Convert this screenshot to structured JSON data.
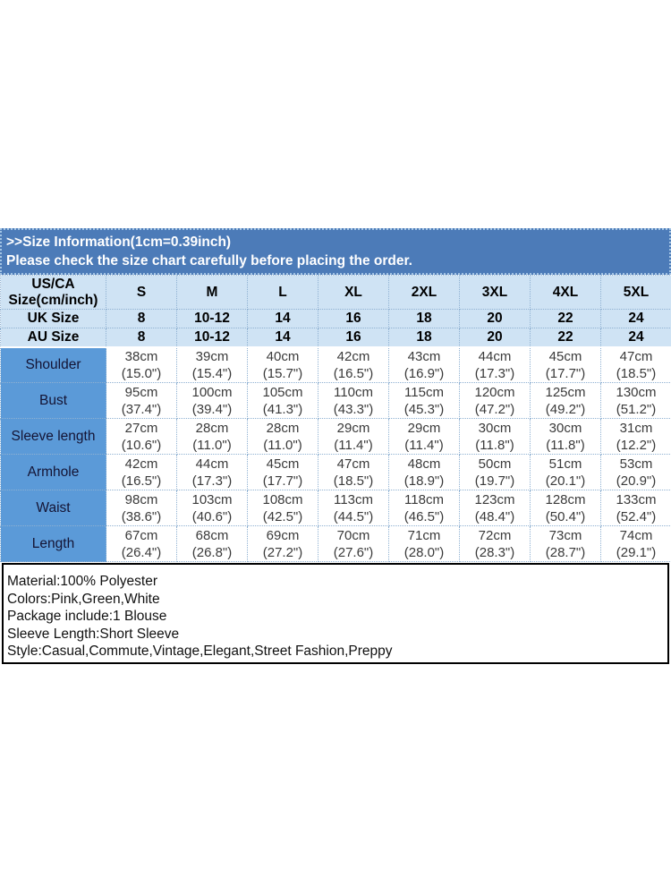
{
  "banner": {
    "line1": ">>Size Information(1cm=0.39inch)",
    "line2": "Please check the size chart carefully before placing the order."
  },
  "size_table": {
    "corner_label_line1": "US/CA",
    "corner_label_line2": "Size(cm/inch)",
    "size_columns": [
      "S",
      "M",
      "L",
      "XL",
      "2XL",
      "3XL",
      "4XL",
      "5XL"
    ],
    "conversion_rows": [
      {
        "label": "UK Size",
        "values": [
          "8",
          "10-12",
          "14",
          "16",
          "18",
          "20",
          "22",
          "24"
        ]
      },
      {
        "label": "AU Size",
        "values": [
          "8",
          "10-12",
          "14",
          "16",
          "18",
          "20",
          "22",
          "24"
        ]
      }
    ],
    "measurement_rows": [
      {
        "label": "Shoulder",
        "cm": [
          "38cm",
          "39cm",
          "40cm",
          "42cm",
          "43cm",
          "44cm",
          "45cm",
          "47cm"
        ],
        "inch": [
          "(15.0\")",
          "(15.4\")",
          "(15.7\")",
          "(16.5\")",
          "(16.9\")",
          "(17.3\")",
          "(17.7\")",
          "(18.5\")"
        ]
      },
      {
        "label": "Bust",
        "cm": [
          "95cm",
          "100cm",
          "105cm",
          "110cm",
          "115cm",
          "120cm",
          "125cm",
          "130cm"
        ],
        "inch": [
          "(37.4\")",
          "(39.4\")",
          "(41.3\")",
          "(43.3\")",
          "(45.3\")",
          "(47.2\")",
          "(49.2\")",
          "(51.2\")"
        ]
      },
      {
        "label": "Sleeve length",
        "cm": [
          "27cm",
          "28cm",
          "28cm",
          "29cm",
          "29cm",
          "30cm",
          "30cm",
          "31cm"
        ],
        "inch": [
          "(10.6\")",
          "(11.0\")",
          "(11.0\")",
          "(11.4\")",
          "(11.4\")",
          "(11.8\")",
          "(11.8\")",
          "(12.2\")"
        ]
      },
      {
        "label": "Armhole",
        "cm": [
          "42cm",
          "44cm",
          "45cm",
          "47cm",
          "48cm",
          "50cm",
          "51cm",
          "53cm"
        ],
        "inch": [
          "(16.5\")",
          "(17.3\")",
          "(17.7\")",
          "(18.5\")",
          "(18.9\")",
          "(19.7\")",
          "(20.1\")",
          "(20.9\")"
        ]
      },
      {
        "label": "Waist",
        "cm": [
          "98cm",
          "103cm",
          "108cm",
          "113cm",
          "118cm",
          "123cm",
          "128cm",
          "133cm"
        ],
        "inch": [
          "(38.6\")",
          "(40.6\")",
          "(42.5\")",
          "(44.5\")",
          "(46.5\")",
          "(48.4\")",
          "(50.4\")",
          "(52.4\")"
        ]
      },
      {
        "label": "Length",
        "cm": [
          "67cm",
          "68cm",
          "69cm",
          "70cm",
          "71cm",
          "72cm",
          "73cm",
          "74cm"
        ],
        "inch": [
          "(26.4\")",
          "(26.8\")",
          "(27.2\")",
          "(27.6\")",
          "(28.0\")",
          "(28.3\")",
          "(28.7\")",
          "(29.1\")"
        ]
      }
    ]
  },
  "product_info": {
    "lines": [
      "Material:100% Polyester",
      "Colors:Pink,Green,White",
      "Package include:1 Blouse",
      "Sleeve Length:Short Sleeve",
      "Style:Casual,Commute,Vintage,Elegant,Street Fashion,Preppy"
    ]
  },
  "colors": {
    "banner_blue": "#4c7bb8",
    "header_light_blue": "#cfe3f4",
    "label_column_blue": "#5b9ad8",
    "grid_dotted": "#8fb1d2"
  }
}
